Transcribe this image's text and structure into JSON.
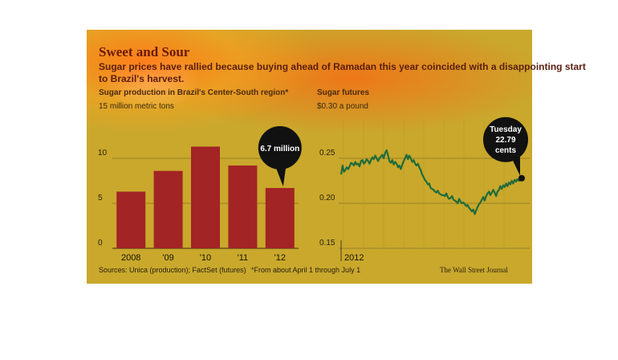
{
  "title": "Sweet and Sour",
  "subtitle_line1": "Sugar prices have rallied because buying ahead of Ramadan this year coincided with a disappointing start",
  "subtitle_line2": "to Brazil's harvest.",
  "sources": "Sources: Unica (production); FactSet (futures)",
  "footnote": "*From about April 1 through July 1",
  "credit": "The Wall Street Journal",
  "colors": {
    "bar": "#a32424",
    "line": "#1f6b3a",
    "panel": "#c9a82c",
    "callout": "#111111"
  },
  "chart_data": [
    {
      "type": "bar",
      "title": "Sugar production in Brazil's Center-South region*",
      "unit_label": "15 million metric tons",
      "categories": [
        "2008",
        "'09",
        "'10",
        "'11",
        "'12"
      ],
      "values": [
        6.3,
        8.6,
        11.3,
        9.2,
        6.7
      ],
      "yticks": [
        "10",
        "5",
        "0"
      ],
      "ylim": [
        0,
        15
      ],
      "grid": true,
      "annotation": {
        "category": "'12",
        "text": "6.7 million"
      }
    },
    {
      "type": "line",
      "title": "Sugar futures",
      "unit_label": "$0.30 a pound",
      "xlabel": "2012",
      "yticks": [
        "0.25",
        "0.20",
        "0.15"
      ],
      "ylim": [
        0.15,
        0.3
      ],
      "grid": true,
      "x": [
        0,
        1,
        2,
        3,
        4,
        5,
        6,
        7,
        8,
        9,
        10,
        11,
        12,
        13,
        14,
        15,
        16,
        17,
        18,
        19,
        20,
        21,
        22,
        23,
        24,
        25,
        26,
        27,
        28,
        29,
        30,
        31,
        32,
        33,
        34,
        35,
        36,
        37,
        38,
        39,
        40,
        41,
        42,
        43,
        44,
        45,
        46,
        47,
        48,
        49,
        50,
        51,
        52,
        53,
        54,
        55,
        56,
        57,
        58,
        59,
        60,
        61,
        62,
        63,
        64,
        65,
        66,
        67,
        68,
        69,
        70,
        71,
        72,
        73,
        74,
        75,
        76,
        77,
        78,
        79,
        80,
        81,
        82,
        83,
        84,
        85,
        86,
        87,
        88,
        89,
        90,
        91,
        92,
        93,
        94,
        95,
        96,
        97,
        98,
        99,
        100,
        101,
        102,
        103,
        104,
        105,
        106,
        107,
        108,
        109,
        110,
        111,
        112,
        113,
        114,
        115,
        116,
        117,
        118,
        119,
        120,
        121,
        122,
        123,
        124,
        125,
        126,
        127
      ],
      "values": [
        0.232,
        0.242,
        0.235,
        0.237,
        0.24,
        0.238,
        0.241,
        0.245,
        0.244,
        0.242,
        0.246,
        0.243,
        0.244,
        0.241,
        0.247,
        0.248,
        0.244,
        0.246,
        0.249,
        0.247,
        0.244,
        0.248,
        0.251,
        0.249,
        0.253,
        0.25,
        0.247,
        0.25,
        0.252,
        0.254,
        0.25,
        0.256,
        0.259,
        0.253,
        0.247,
        0.245,
        0.248,
        0.243,
        0.246,
        0.244,
        0.24,
        0.242,
        0.238,
        0.243,
        0.247,
        0.25,
        0.254,
        0.249,
        0.253,
        0.25,
        0.246,
        0.248,
        0.244,
        0.242,
        0.244,
        0.24,
        0.237,
        0.232,
        0.229,
        0.226,
        0.224,
        0.221,
        0.222,
        0.217,
        0.216,
        0.215,
        0.213,
        0.212,
        0.214,
        0.211,
        0.21,
        0.209,
        0.209,
        0.208,
        0.211,
        0.207,
        0.205,
        0.206,
        0.208,
        0.204,
        0.203,
        0.202,
        0.2,
        0.205,
        0.202,
        0.2,
        0.201,
        0.199,
        0.197,
        0.198,
        0.195,
        0.193,
        0.191,
        0.193,
        0.188,
        0.192,
        0.196,
        0.199,
        0.201,
        0.204,
        0.207,
        0.203,
        0.208,
        0.211,
        0.213,
        0.209,
        0.212,
        0.215,
        0.212,
        0.208,
        0.213,
        0.215,
        0.219,
        0.216,
        0.22,
        0.218,
        0.222,
        0.219,
        0.223,
        0.221,
        0.225,
        0.222,
        0.226,
        0.224,
        0.227,
        0.225,
        0.226,
        0.2279
      ],
      "annotation": {
        "label_top": "Tuesday",
        "value_text": "22.79",
        "unit_text": "cents"
      }
    }
  ]
}
